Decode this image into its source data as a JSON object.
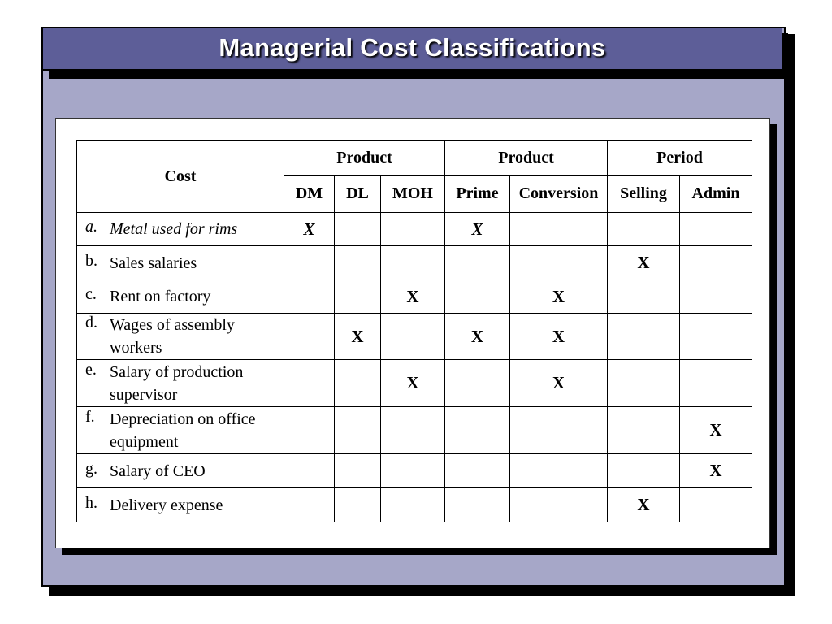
{
  "title": "Managerial Cost Classifications",
  "table": {
    "cost_header": "Cost",
    "groups": [
      {
        "label": "Product",
        "span": 3
      },
      {
        "label": "Product",
        "span": 2
      },
      {
        "label": "Period",
        "span": 2
      }
    ],
    "columns": [
      "DM",
      "DL",
      "MOH",
      "Prime",
      "Conversion",
      "Selling",
      "Admin"
    ],
    "rows": [
      {
        "label": "a.",
        "cost": "Metal used for rims",
        "marks": [
          "X",
          "",
          "",
          "X",
          "",
          "",
          ""
        ]
      },
      {
        "label": "b.",
        "cost": "Sales salaries",
        "marks": [
          "",
          "",
          "",
          "",
          "",
          "X",
          ""
        ]
      },
      {
        "label": "c.",
        "cost": "Rent on factory",
        "marks": [
          "",
          "",
          "X",
          "",
          "X",
          "",
          ""
        ]
      },
      {
        "label": "d.",
        "cost": "Wages of assembly workers",
        "marks": [
          "",
          "X",
          "",
          "X",
          "X",
          "",
          ""
        ]
      },
      {
        "label": "e.",
        "cost": "Salary of production supervisor",
        "marks": [
          "",
          "",
          "X",
          "",
          "X",
          "",
          ""
        ]
      },
      {
        "label": "f.",
        "cost": "Depreciation on office equipment",
        "marks": [
          "",
          "",
          "",
          "",
          "",
          "",
          "X"
        ]
      },
      {
        "label": "g.",
        "cost": "Salary of CEO",
        "marks": [
          "",
          "",
          "",
          "",
          "",
          "",
          "X"
        ]
      },
      {
        "label": "h.",
        "cost": "Delivery expense",
        "marks": [
          "",
          "",
          "",
          "",
          "",
          "X",
          ""
        ]
      }
    ]
  }
}
